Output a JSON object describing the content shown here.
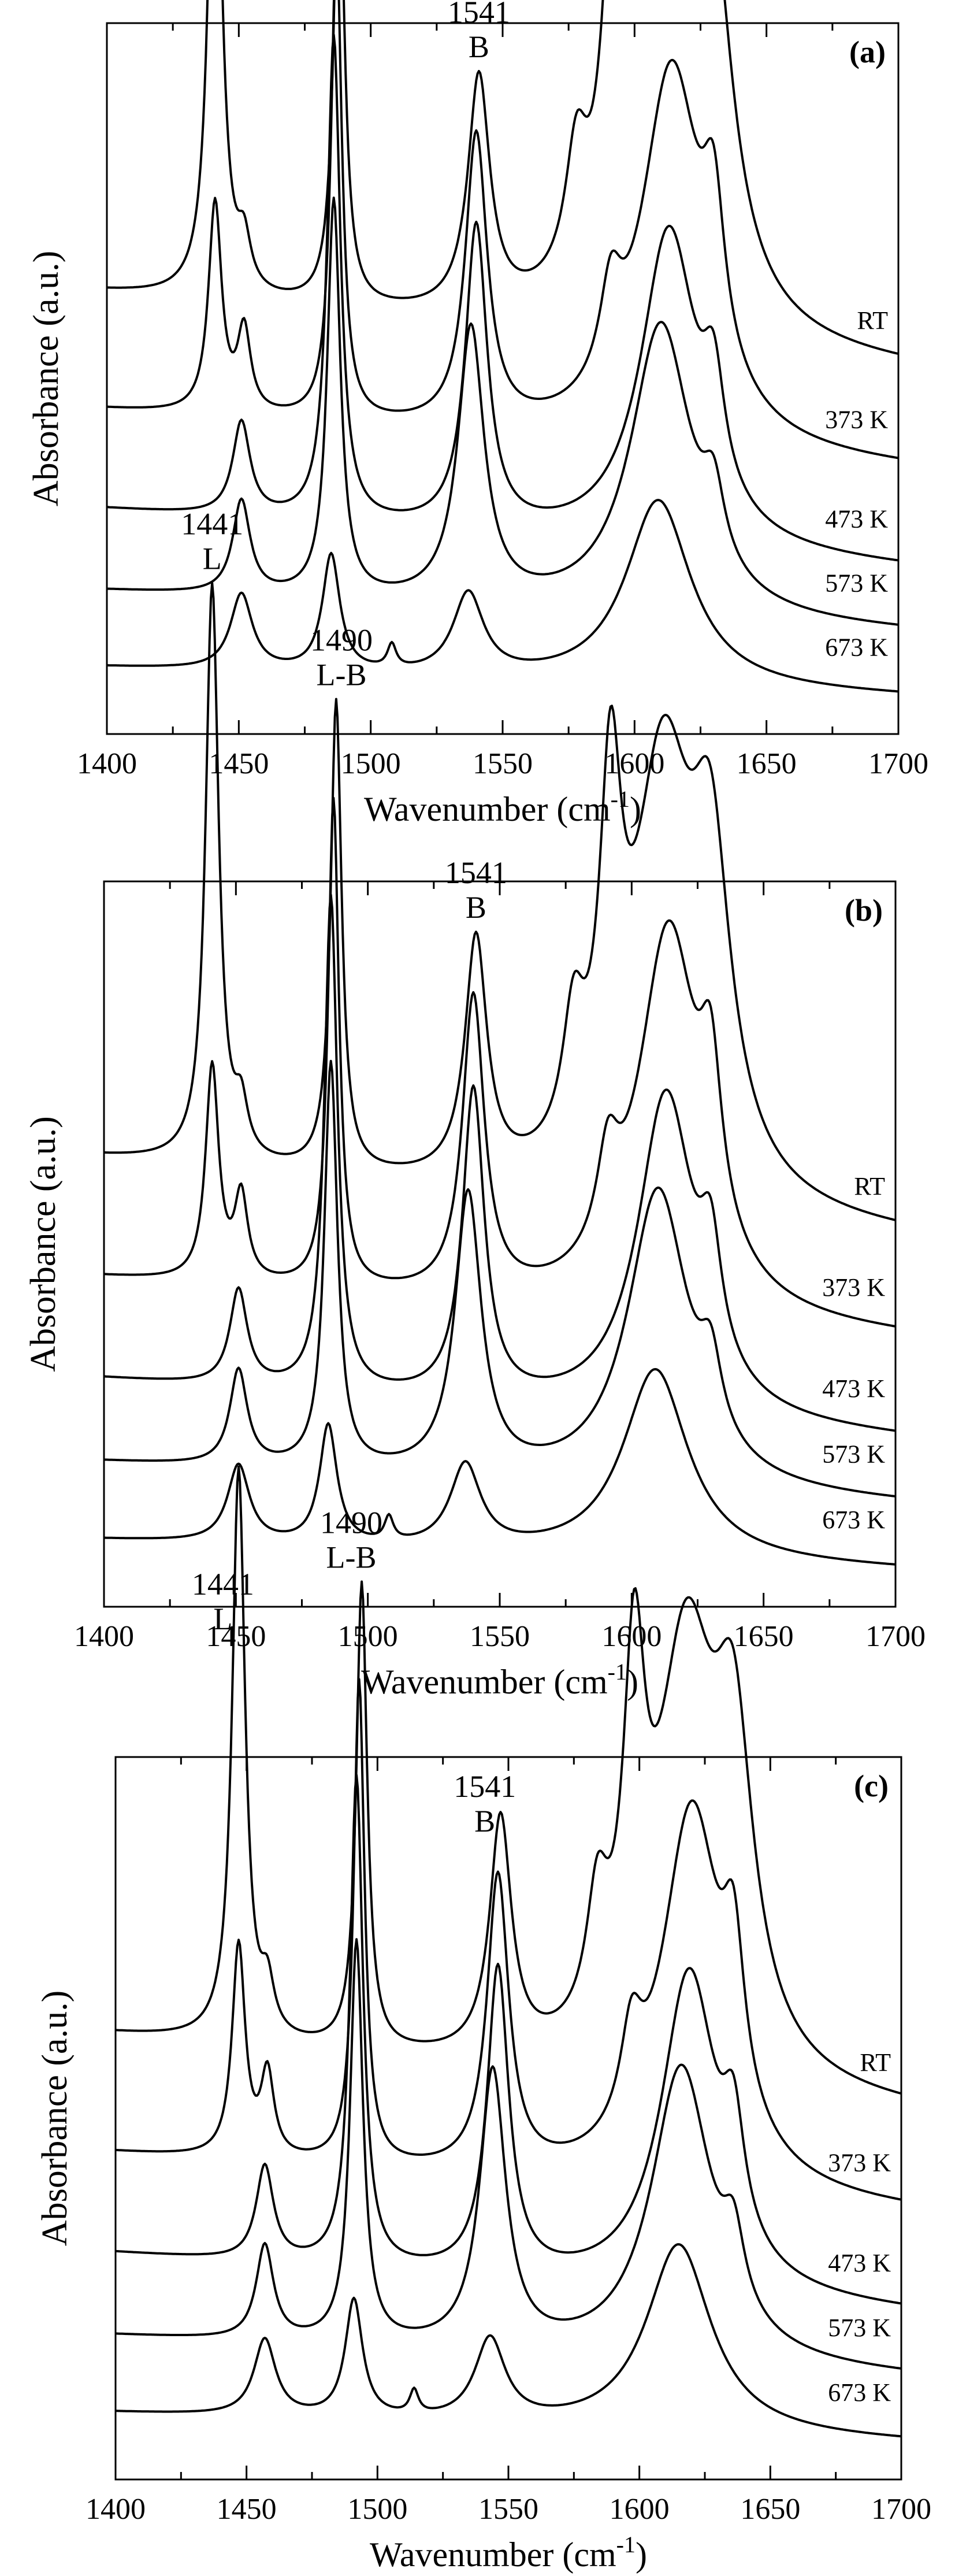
{
  "figure": {
    "x_axis_label": "Wavenumber (cm",
    "x_axis_label_sup": "-1",
    "x_axis_label_end": ")",
    "y_axis_label": "Absorbance (a.u.)"
  },
  "chart_data": [
    {
      "type": "line",
      "panel_label": "(a)",
      "xlabel": "Wavenumber (cm-1)",
      "ylabel": "Absorbance (a.u.)",
      "xlim": [
        1400,
        1700
      ],
      "xticks": [
        "1400",
        "1450",
        "1500",
        "1550",
        "1600",
        "1650",
        "1700"
      ],
      "y_ticks_shown": false,
      "grid": false,
      "peak_annotations": [
        {
          "x": 1441,
          "number": "1441",
          "site": "L"
        },
        {
          "x": 1490,
          "number": "1490",
          "site": "L-B"
        },
        {
          "x": 1541,
          "number": "1541",
          "site": "B"
        }
      ],
      "series": [
        {
          "name": "RT",
          "baseline": 0.66,
          "end": 0.53,
          "peaks": [
            [
              1441,
              0.97,
              3.0
            ],
            [
              1452,
              0.08,
              3.0
            ],
            [
              1488,
              0.79,
              2.5
            ],
            [
              1541,
              0.4,
              5.0
            ],
            [
              1578,
              0.2,
              5.0
            ],
            [
              1592,
              0.56,
              5.0
            ],
            [
              1612,
              0.7,
              14.0
            ],
            [
              1630,
              0.48,
              9.0
            ]
          ]
        },
        {
          "name": "373 K",
          "baseline": 0.46,
          "end": 0.36,
          "peaks": [
            [
              1441,
              0.36,
              3.0
            ],
            [
              1452,
              0.14,
              3.0
            ],
            [
              1487,
              0.82,
              2.5
            ],
            [
              1540,
              0.5,
              5.0
            ],
            [
              1591,
              0.15,
              5.0
            ],
            [
              1614,
              0.64,
              14.0
            ],
            [
              1630,
              0.25,
              5.0
            ]
          ]
        },
        {
          "name": "473 K",
          "baseline": 0.29,
          "end": 0.19,
          "peaks": [
            [
              1451,
              0.16,
              4.0
            ],
            [
              1486,
              0.83,
              3.0
            ],
            [
              1540,
              0.52,
              5.0
            ],
            [
              1613,
              0.54,
              13.0
            ],
            [
              1630,
              0.18,
              5.0
            ]
          ]
        },
        {
          "name": "573 K",
          "baseline": 0.15,
          "end": 0.08,
          "peaks": [
            [
              1451,
              0.16,
              4.0
            ],
            [
              1486,
              0.68,
              3.0
            ],
            [
              1538,
              0.47,
              6.0
            ],
            [
              1610,
              0.5,
              14.0
            ],
            [
              1630,
              0.12,
              5.0
            ]
          ]
        },
        {
          "name": "673 K",
          "baseline": 0.02,
          "end": -0.03,
          "peaks": [
            [
              1451,
              0.13,
              5.0
            ],
            [
              1485,
              0.2,
              4.0
            ],
            [
              1508,
              0.04,
              2.0
            ],
            [
              1537,
              0.14,
              7.0
            ],
            [
              1609,
              0.32,
              15.0
            ]
          ]
        }
      ]
    },
    {
      "type": "line",
      "panel_label": "(b)",
      "xlabel": "Wavenumber (cm-1)",
      "ylabel": "Absorbance (a.u.)",
      "xlim": [
        1400,
        1700
      ],
      "xticks": [
        "1400",
        "1450",
        "1500",
        "1550",
        "1600",
        "1650",
        "1700"
      ],
      "y_ticks_shown": false,
      "grid": false,
      "peak_annotations": [
        {
          "x": 1441,
          "number": "1441",
          "site": "L"
        },
        {
          "x": 1490,
          "number": "1490",
          "site": "L-B"
        },
        {
          "x": 1541,
          "number": "1541",
          "site": "B"
        }
      ],
      "series": [
        {
          "name": "RT",
          "baseline": 0.66,
          "end": 0.53,
          "peaks": [
            [
              1441,
              0.97,
              3.0
            ],
            [
              1452,
              0.08,
              3.0
            ],
            [
              1488,
              0.79,
              2.5
            ],
            [
              1541,
              0.4,
              5.0
            ],
            [
              1578,
              0.2,
              5.0
            ],
            [
              1592,
              0.56,
              5.0
            ],
            [
              1612,
              0.7,
              14.0
            ],
            [
              1630,
              0.48,
              9.0
            ]
          ]
        },
        {
          "name": "373 K",
          "baseline": 0.46,
          "end": 0.36,
          "peaks": [
            [
              1441,
              0.36,
              3.0
            ],
            [
              1452,
              0.14,
              3.0
            ],
            [
              1487,
              0.82,
              2.5
            ],
            [
              1540,
              0.5,
              5.0
            ],
            [
              1591,
              0.15,
              5.0
            ],
            [
              1614,
              0.64,
              14.0
            ],
            [
              1630,
              0.25,
              5.0
            ]
          ]
        },
        {
          "name": "473 K",
          "baseline": 0.29,
          "end": 0.19,
          "peaks": [
            [
              1451,
              0.16,
              4.0
            ],
            [
              1486,
              0.83,
              3.0
            ],
            [
              1540,
              0.52,
              5.0
            ],
            [
              1613,
              0.54,
              13.0
            ],
            [
              1630,
              0.18,
              5.0
            ]
          ]
        },
        {
          "name": "573 K",
          "baseline": 0.15,
          "end": 0.08,
          "peaks": [
            [
              1451,
              0.16,
              4.0
            ],
            [
              1486,
              0.68,
              3.0
            ],
            [
              1538,
              0.47,
              6.0
            ],
            [
              1610,
              0.5,
              14.0
            ],
            [
              1630,
              0.12,
              5.0
            ]
          ]
        },
        {
          "name": "673 K",
          "baseline": 0.02,
          "end": -0.03,
          "peaks": [
            [
              1451,
              0.13,
              5.0
            ],
            [
              1485,
              0.2,
              4.0
            ],
            [
              1508,
              0.04,
              2.0
            ],
            [
              1537,
              0.14,
              7.0
            ],
            [
              1609,
              0.32,
              15.0
            ]
          ]
        }
      ]
    },
    {
      "type": "line",
      "panel_label": "(c)",
      "xlabel": "Wavenumber (cm-1)",
      "ylabel": "Absorbance (a.u.)",
      "xlim": [
        1400,
        1700
      ],
      "xticks": [
        "1400",
        "1450",
        "1500",
        "1550",
        "1600",
        "1650",
        "1700"
      ],
      "y_ticks_shown": false,
      "grid": false,
      "peak_annotations": [
        {
          "x": 1441,
          "number": "1441",
          "site": "L"
        },
        {
          "x": 1490,
          "number": "1490",
          "site": "L-B"
        },
        {
          "x": 1541,
          "number": "1541",
          "site": "B"
        }
      ],
      "series": [
        {
          "name": "RT",
          "baseline": 0.66,
          "end": 0.53,
          "peaks": [
            [
              1441,
              0.97,
              3.0
            ],
            [
              1452,
              0.08,
              3.0
            ],
            [
              1488,
              0.79,
              2.5
            ],
            [
              1541,
              0.4,
              5.0
            ],
            [
              1578,
              0.2,
              5.0
            ],
            [
              1592,
              0.56,
              5.0
            ],
            [
              1612,
              0.7,
              14.0
            ],
            [
              1630,
              0.48,
              9.0
            ]
          ]
        },
        {
          "name": "373 K",
          "baseline": 0.46,
          "end": 0.36,
          "peaks": [
            [
              1441,
              0.36,
              3.0
            ],
            [
              1452,
              0.14,
              3.0
            ],
            [
              1487,
              0.82,
              2.5
            ],
            [
              1540,
              0.5,
              5.0
            ],
            [
              1591,
              0.15,
              5.0
            ],
            [
              1614,
              0.64,
              14.0
            ],
            [
              1630,
              0.25,
              5.0
            ]
          ]
        },
        {
          "name": "473 K",
          "baseline": 0.29,
          "end": 0.19,
          "peaks": [
            [
              1451,
              0.16,
              4.0
            ],
            [
              1486,
              0.83,
              3.0
            ],
            [
              1540,
              0.52,
              5.0
            ],
            [
              1613,
              0.54,
              13.0
            ],
            [
              1630,
              0.18,
              5.0
            ]
          ]
        },
        {
          "name": "573 K",
          "baseline": 0.15,
          "end": 0.08,
          "peaks": [
            [
              1451,
              0.16,
              4.0
            ],
            [
              1486,
              0.68,
              3.0
            ],
            [
              1538,
              0.47,
              6.0
            ],
            [
              1610,
              0.5,
              14.0
            ],
            [
              1630,
              0.12,
              5.0
            ]
          ]
        },
        {
          "name": "673 K",
          "baseline": 0.02,
          "end": -0.03,
          "peaks": [
            [
              1451,
              0.13,
              5.0
            ],
            [
              1485,
              0.2,
              4.0
            ],
            [
              1508,
              0.04,
              2.0
            ],
            [
              1537,
              0.14,
              7.0
            ],
            [
              1609,
              0.32,
              15.0
            ]
          ]
        }
      ]
    }
  ]
}
